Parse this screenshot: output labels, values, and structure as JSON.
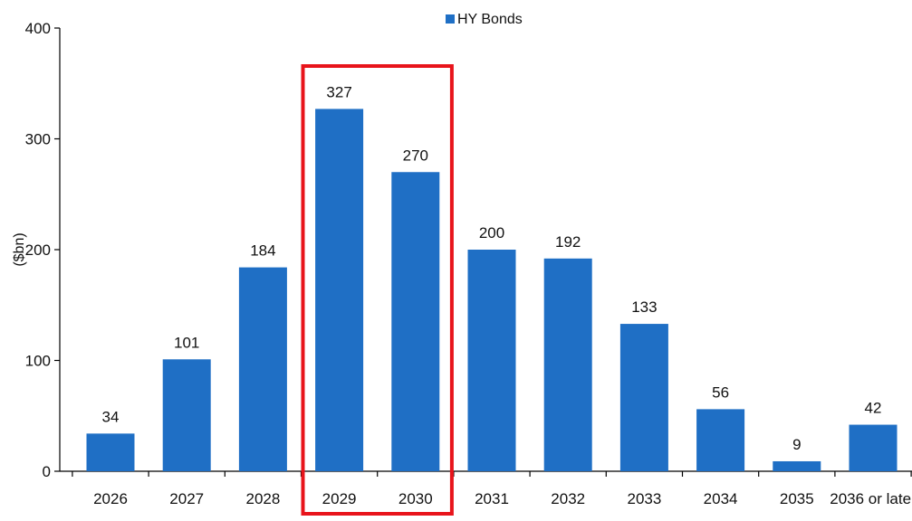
{
  "chart_data": {
    "type": "bar",
    "title": "",
    "xlabel": "",
    "ylabel": "($bn)",
    "ylim": [
      0,
      400
    ],
    "yticks": [
      0,
      100,
      200,
      300,
      400
    ],
    "grid": false,
    "legend_position": "top",
    "categories": [
      "2026",
      "2027",
      "2028",
      "2029",
      "2030",
      "2031",
      "2032",
      "2033",
      "2034",
      "2035",
      "2036 or later"
    ],
    "series": [
      {
        "name": "HY Bonds",
        "values": [
          34,
          101,
          184,
          327,
          270,
          200,
          192,
          133,
          56,
          9,
          42
        ],
        "color": "#1F6FC5"
      }
    ],
    "data_labels": [
      "34",
      "101",
      "184",
      "327",
      "270",
      "200",
      "192",
      "133",
      "56",
      "9",
      "42"
    ],
    "highlight": {
      "categories": [
        "2029",
        "2030"
      ],
      "color": "#E8141B"
    }
  }
}
